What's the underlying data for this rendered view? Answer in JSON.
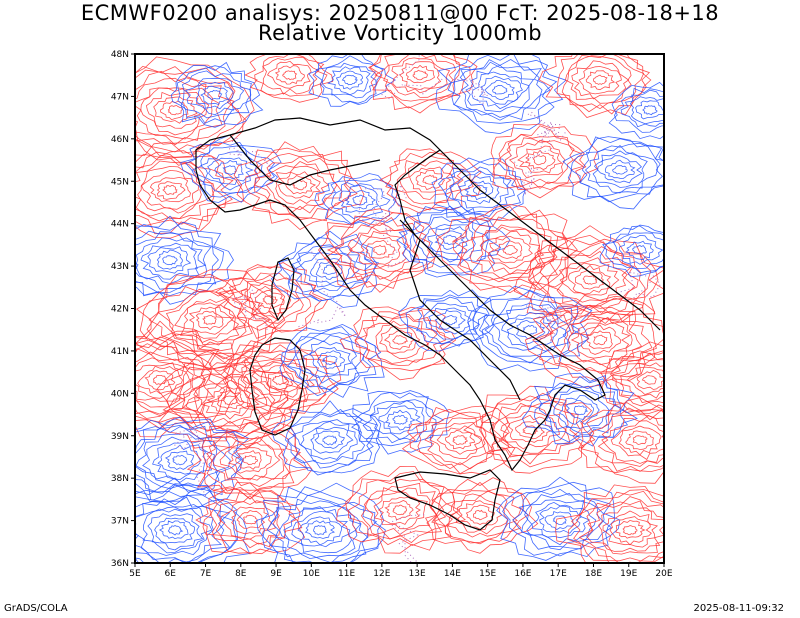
{
  "header": {
    "title_line1": "ECMWF0200 analisys: 20250811@00 FcT: 2025-08-18+18",
    "title_line2": "Relative Vorticity 1000mb"
  },
  "map": {
    "projection": "lat-lon",
    "lon_range": [
      5,
      20
    ],
    "lat_range": [
      36,
      48
    ],
    "lat_labels": [
      "48N",
      "47N",
      "46N",
      "45N",
      "44N",
      "43N",
      "42N",
      "41N",
      "40N",
      "39N",
      "38N",
      "37N",
      "36N"
    ],
    "lon_labels": [
      "5E",
      "6E",
      "7E",
      "8E",
      "9E",
      "10E",
      "11E",
      "12E",
      "13E",
      "14E",
      "15E",
      "16E",
      "17E",
      "18E",
      "19E",
      "20E"
    ],
    "colors": {
      "positive_vorticity": "#ff3030",
      "negative_vorticity": "#2050ff",
      "zero_contour": "#b070c0",
      "coastline": "#000000",
      "background": "#ffffff"
    }
  },
  "footer": {
    "left": "GrADS/COLA",
    "right": "2025-08-11-09:32"
  }
}
